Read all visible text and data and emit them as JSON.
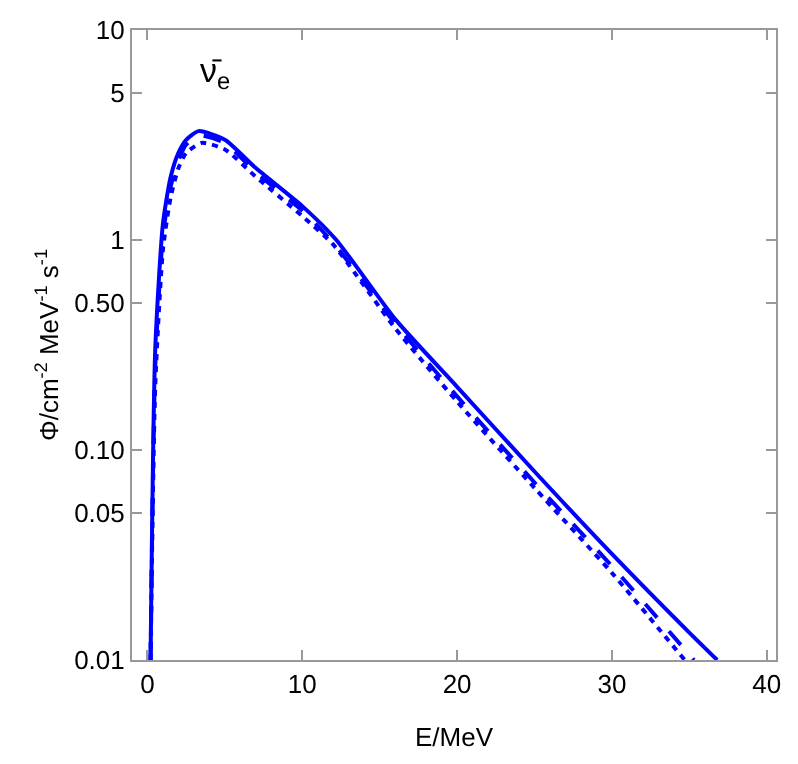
{
  "chart_data": {
    "type": "line",
    "xlabel": "E/MeV",
    "ylabel": "Φ/cm$^{-2}$ MeV$^{-1}$ s$^{-1}$",
    "annotations": [
      "ν̄$_{e}$"
    ],
    "log": "y",
    "marker": "none",
    "xlim": [
      -1,
      40.6
    ],
    "xticks": [
      0,
      10,
      20,
      30,
      40
    ],
    "ylim": [
      0.01,
      10
    ],
    "yticks": [
      0.01,
      0.05,
      {
        "value": 0.1,
        "label": "0.10"
      },
      {
        "value": 0.5,
        "label": "0.50"
      },
      1,
      5,
      10
    ],
    "series": [
      {
        "color": "#0000ff",
        "line_style": "solid",
        "x": [
          0.2,
          0.5,
          1,
          1.5,
          2,
          2.5,
          3.3,
          5,
          7,
          10,
          12.2,
          16,
          20,
          25,
          30,
          35,
          36.8
        ],
        "values": [
          0.01,
          0.3,
          1.2,
          2.0,
          2.6,
          3.0,
          3.3,
          3.0,
          2.2,
          1.45,
          1.0,
          0.42,
          0.2,
          0.079,
          0.032,
          0.0135,
          0.01
        ]
      },
      {
        "color": "#0000ff",
        "line_style": "dashed",
        "x": [
          0.2,
          0.5,
          1,
          1.5,
          2,
          2.5,
          3.3,
          5,
          7,
          10,
          12,
          16,
          20,
          25,
          30,
          35.3
        ],
        "values": [
          0.01,
          0.25,
          1.05,
          1.8,
          2.4,
          2.85,
          3.15,
          2.9,
          2.1,
          1.38,
          0.97,
          0.4,
          0.18,
          0.07,
          0.028,
          0.01
        ]
      },
      {
        "color": "#0000ff",
        "line_style": "dotted",
        "x": [
          0.2,
          0.5,
          1,
          1.5,
          2,
          2.5,
          3.5,
          5,
          7,
          10,
          12,
          16,
          20,
          25,
          30,
          34.7
        ],
        "values": [
          0.01,
          0.2,
          0.9,
          1.6,
          2.2,
          2.6,
          2.9,
          2.7,
          2.0,
          1.3,
          0.95,
          0.38,
          0.17,
          0.066,
          0.026,
          0.01
        ]
      }
    ]
  }
}
